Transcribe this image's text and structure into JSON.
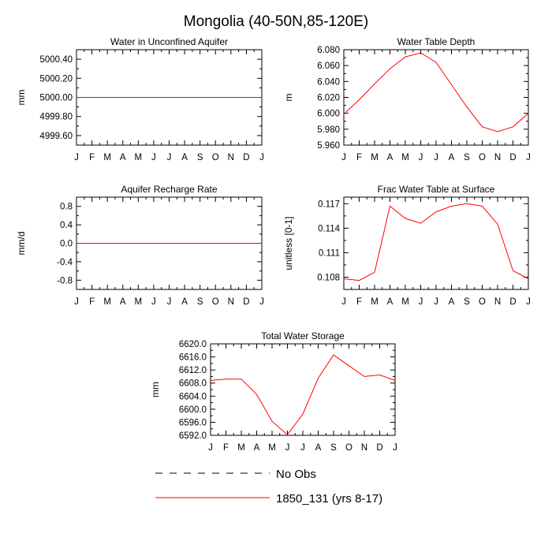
{
  "title": "Mongolia (40-50N,85-120E)",
  "months": [
    "J",
    "F",
    "M",
    "A",
    "M",
    "J",
    "J",
    "A",
    "S",
    "O",
    "N",
    "D",
    "J"
  ],
  "legend": {
    "obs_label": "No Obs",
    "model_label": "1850_131 (yrs 8-17)",
    "model_color": "#ff0000",
    "obs_color": "#000000"
  },
  "chart_data": [
    {
      "type": "line",
      "title": "Water in Unconfined Aquifer",
      "ylabel": "mm",
      "ylim": [
        4999.5,
        5000.5
      ],
      "yticks": [
        "5000.40",
        "5000.20",
        "5000.00",
        "4999.80",
        "4999.60"
      ],
      "ytick_values": [
        5000.4,
        5000.2,
        5000.0,
        4999.8,
        4999.6
      ],
      "series": [
        {
          "name": "1850_131 (yrs 8-17)",
          "values": [
            5000,
            5000,
            5000,
            5000,
            5000,
            5000,
            5000,
            5000,
            5000,
            5000,
            5000,
            5000,
            5000
          ]
        }
      ]
    },
    {
      "type": "line",
      "title": "Water Table Depth",
      "ylabel": "m",
      "ylim": [
        5.96,
        6.08
      ],
      "yticks": [
        "6.080",
        "6.060",
        "6.040",
        "6.020",
        "6.000",
        "5.980",
        "5.960"
      ],
      "ytick_values": [
        6.08,
        6.06,
        6.04,
        6.02,
        6.0,
        5.98,
        5.96
      ],
      "series": [
        {
          "name": "1850_131 (yrs 8-17)",
          "values": [
            5.999,
            6.017,
            6.037,
            6.056,
            6.071,
            6.076,
            6.064,
            6.036,
            6.008,
            5.983,
            5.977,
            5.983,
            6.0
          ]
        }
      ]
    },
    {
      "type": "line",
      "title": "Aquifer Recharge Rate",
      "ylabel": "mm/d",
      "ylim": [
        -1.0,
        1.0
      ],
      "yticks": [
        "0.8",
        "0.4",
        "0.0",
        "-0.4",
        "-0.8"
      ],
      "ytick_values": [
        0.8,
        0.4,
        0.0,
        -0.4,
        -0.8
      ],
      "series": [
        {
          "name": "1850_131 (yrs 8-17)",
          "values": [
            0,
            0,
            0,
            0,
            0,
            0,
            0,
            0,
            0,
            0,
            0,
            0,
            0
          ]
        }
      ]
    },
    {
      "type": "line",
      "title": "Frac Water Table at Surface",
      "ylabel": "unitless [0-1]",
      "ylim": [
        0.1065,
        0.1178
      ],
      "yticks": [
        "0.117",
        "0.114",
        "0.111",
        "0.108"
      ],
      "ytick_values": [
        0.117,
        0.114,
        0.111,
        0.108
      ],
      "series": [
        {
          "name": "1850_131 (yrs 8-17)",
          "values": [
            0.1078,
            0.1076,
            0.1086,
            0.1167,
            0.1152,
            0.1146,
            0.116,
            0.1167,
            0.117,
            0.1167,
            0.1145,
            0.1088,
            0.1078
          ]
        }
      ]
    },
    {
      "type": "line",
      "title": "Total Water Storage",
      "ylabel": "mm",
      "ylim": [
        6592.0,
        6620.0
      ],
      "yticks": [
        "6620.0",
        "6616.0",
        "6612.0",
        "6608.0",
        "6604.0",
        "6600.0",
        "6596.0",
        "6592.0"
      ],
      "ytick_values": [
        6620,
        6616,
        6612,
        6608,
        6604,
        6600,
        6596,
        6592
      ],
      "series": [
        {
          "name": "1850_131 (yrs 8-17)",
          "values": [
            6608.8,
            6609.2,
            6609.2,
            6604.5,
            6596.3,
            6592.2,
            6598.5,
            6609.5,
            6616.6,
            6613.3,
            6610.0,
            6610.5,
            6608.8
          ]
        }
      ]
    }
  ]
}
